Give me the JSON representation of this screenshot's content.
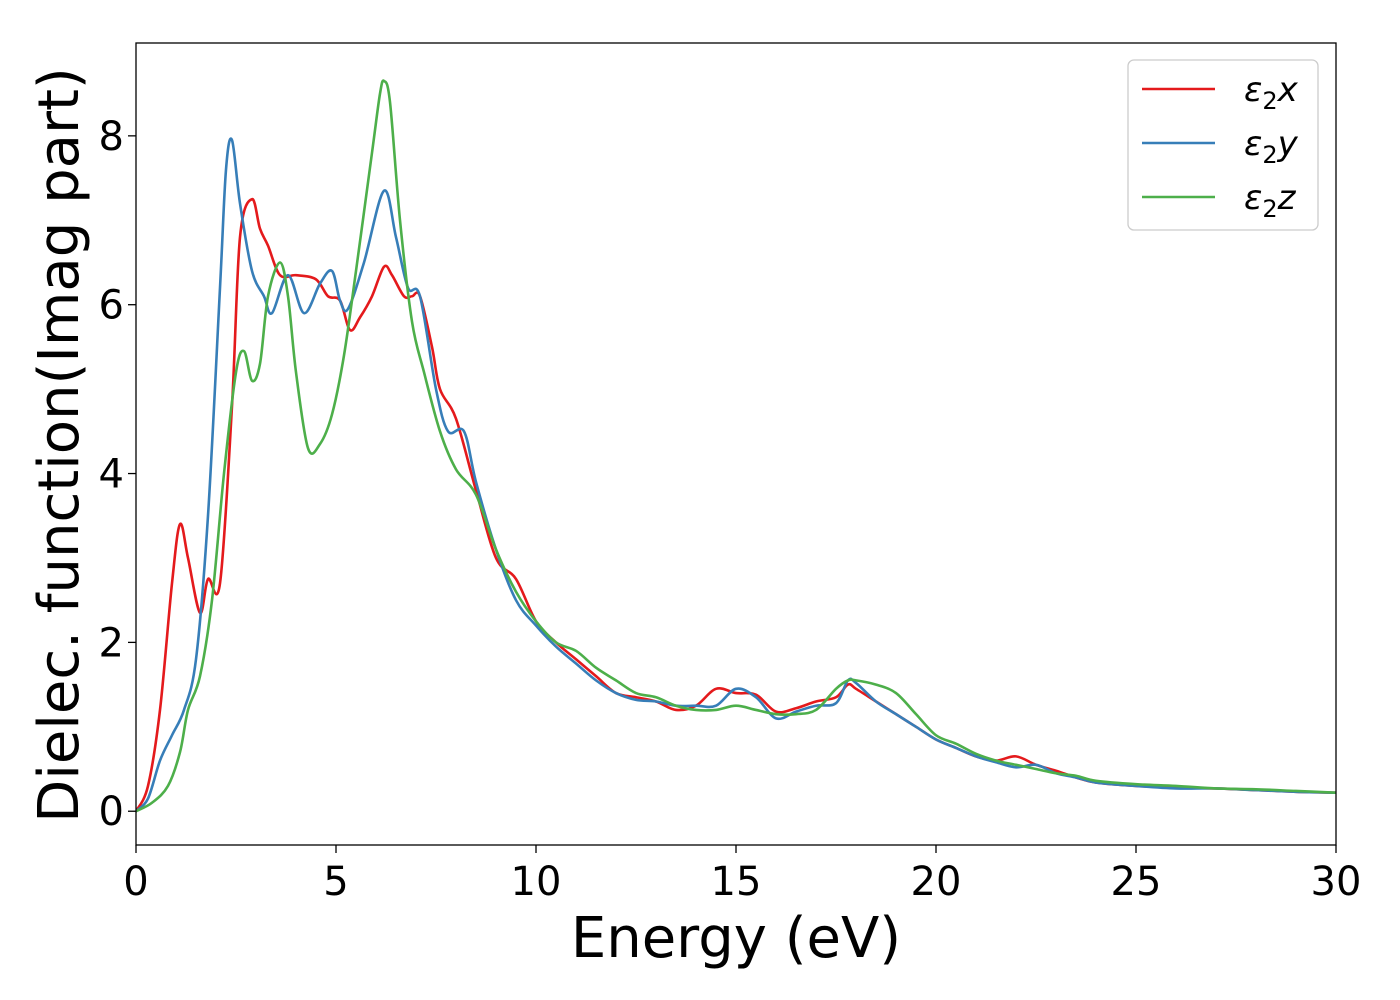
{
  "chart_data": {
    "type": "line",
    "title": "",
    "xlabel": "Energy (eV)",
    "ylabel": "Dielec. function(Imag part)",
    "xlim": [
      0,
      30
    ],
    "ylim": [
      -0.4,
      9.1
    ],
    "xticks": [
      0,
      5,
      10,
      15,
      20,
      25,
      30
    ],
    "yticks": [
      0,
      2,
      4,
      6,
      8
    ],
    "grid": false,
    "legend_position": "top-right",
    "series": [
      {
        "name": "ε2x",
        "legend_base": "ε",
        "legend_sub": "2",
        "legend_tail": "x",
        "color": "#e41a1c",
        "x": [
          0,
          0.3,
          0.6,
          0.9,
          1.1,
          1.3,
          1.6,
          1.8,
          2.1,
          2.4,
          2.6,
          2.9,
          3.1,
          3.3,
          3.6,
          4.0,
          4.5,
          4.8,
          5.1,
          5.35,
          5.6,
          5.9,
          6.2,
          6.4,
          6.7,
          6.9,
          7.1,
          7.4,
          7.6,
          8.0,
          8.5,
          9.0,
          9.5,
          10,
          10.5,
          11,
          11.5,
          12,
          12.5,
          13,
          13.5,
          14,
          14.5,
          15,
          15.5,
          16,
          16.5,
          17,
          17.5,
          17.8,
          18,
          18.5,
          19,
          19.5,
          20,
          20.5,
          21,
          21.5,
          22,
          22.5,
          23,
          23.5,
          24,
          25,
          26,
          27,
          28,
          29,
          30
        ],
        "values": [
          0,
          0.3,
          1.2,
          2.7,
          3.4,
          3.0,
          2.35,
          2.75,
          2.7,
          4.8,
          6.8,
          7.25,
          6.9,
          6.7,
          6.35,
          6.35,
          6.3,
          6.1,
          6.05,
          5.7,
          5.85,
          6.1,
          6.45,
          6.35,
          6.1,
          6.1,
          6.1,
          5.5,
          5.0,
          4.65,
          3.8,
          3.0,
          2.75,
          2.25,
          2.0,
          1.8,
          1.6,
          1.4,
          1.35,
          1.3,
          1.2,
          1.25,
          1.45,
          1.4,
          1.38,
          1.18,
          1.22,
          1.3,
          1.35,
          1.5,
          1.45,
          1.3,
          1.15,
          1.0,
          0.85,
          0.75,
          0.65,
          0.6,
          0.65,
          0.55,
          0.48,
          0.4,
          0.34,
          0.3,
          0.28,
          0.27,
          0.25,
          0.23,
          0.22
        ]
      },
      {
        "name": "ε2y",
        "legend_base": "ε",
        "legend_sub": "2",
        "legend_tail": "y",
        "color": "#377eb8",
        "x": [
          0,
          0.3,
          0.6,
          0.9,
          1.2,
          1.5,
          1.8,
          2.1,
          2.25,
          2.4,
          2.6,
          2.9,
          3.2,
          3.4,
          3.8,
          4.2,
          4.6,
          4.9,
          5.1,
          5.3,
          5.7,
          6.2,
          6.5,
          6.8,
          7.1,
          7.5,
          7.8,
          8.2,
          8.5,
          9.0,
          9.5,
          10,
          10.5,
          11,
          11.5,
          12,
          12.5,
          13,
          13.5,
          14,
          14.5,
          15,
          15.5,
          16,
          16.5,
          17,
          17.5,
          17.8,
          18,
          18.5,
          19,
          19.5,
          20,
          20.5,
          21,
          21.5,
          22,
          22.5,
          23,
          23.5,
          24,
          25,
          26,
          27,
          28,
          29,
          30
        ],
        "values": [
          0,
          0.15,
          0.6,
          0.9,
          1.2,
          1.8,
          3.5,
          6.2,
          7.6,
          7.95,
          7.2,
          6.4,
          6.1,
          5.9,
          6.35,
          5.9,
          6.25,
          6.4,
          6.05,
          5.95,
          6.5,
          7.35,
          6.8,
          6.2,
          6.1,
          5.0,
          4.5,
          4.5,
          3.9,
          3.1,
          2.5,
          2.2,
          1.95,
          1.75,
          1.55,
          1.4,
          1.32,
          1.3,
          1.25,
          1.25,
          1.25,
          1.45,
          1.35,
          1.1,
          1.18,
          1.25,
          1.28,
          1.55,
          1.52,
          1.3,
          1.15,
          1.0,
          0.85,
          0.75,
          0.65,
          0.58,
          0.52,
          0.55,
          0.45,
          0.4,
          0.34,
          0.3,
          0.27,
          0.27,
          0.25,
          0.23,
          0.22
        ]
      },
      {
        "name": "ε2z",
        "legend_base": "ε",
        "legend_sub": "2",
        "legend_tail": "z",
        "color": "#4daf4a",
        "x": [
          0,
          0.4,
          0.8,
          1.1,
          1.3,
          1.6,
          1.9,
          2.2,
          2.5,
          2.7,
          2.9,
          3.1,
          3.3,
          3.6,
          3.8,
          4.0,
          4.3,
          4.6,
          4.9,
          5.2,
          5.5,
          5.9,
          6.1,
          6.2,
          6.35,
          6.6,
          6.9,
          7.2,
          7.6,
          8.0,
          8.5,
          9.0,
          9.5,
          10,
          10.5,
          11,
          11.5,
          12,
          12.5,
          13,
          13.5,
          14,
          14.5,
          15,
          15.5,
          16,
          16.5,
          17,
          17.5,
          17.8,
          18,
          18.5,
          19,
          19.5,
          20,
          20.5,
          21,
          21.5,
          22,
          22.5,
          23,
          23.5,
          24,
          25,
          26,
          27,
          28,
          29,
          30
        ],
        "values": [
          0,
          0.1,
          0.3,
          0.7,
          1.2,
          1.6,
          2.5,
          4.0,
          5.2,
          5.45,
          5.1,
          5.3,
          6.1,
          6.5,
          6.1,
          5.2,
          4.3,
          4.35,
          4.7,
          5.4,
          6.4,
          7.8,
          8.5,
          8.65,
          8.4,
          7.0,
          5.8,
          5.2,
          4.5,
          4.05,
          3.75,
          3.1,
          2.6,
          2.25,
          2.0,
          1.9,
          1.7,
          1.55,
          1.4,
          1.35,
          1.25,
          1.2,
          1.2,
          1.25,
          1.2,
          1.15,
          1.15,
          1.2,
          1.45,
          1.55,
          1.55,
          1.5,
          1.4,
          1.15,
          0.9,
          0.8,
          0.68,
          0.6,
          0.55,
          0.5,
          0.45,
          0.42,
          0.36,
          0.32,
          0.3,
          0.27,
          0.26,
          0.24,
          0.22
        ]
      }
    ]
  }
}
